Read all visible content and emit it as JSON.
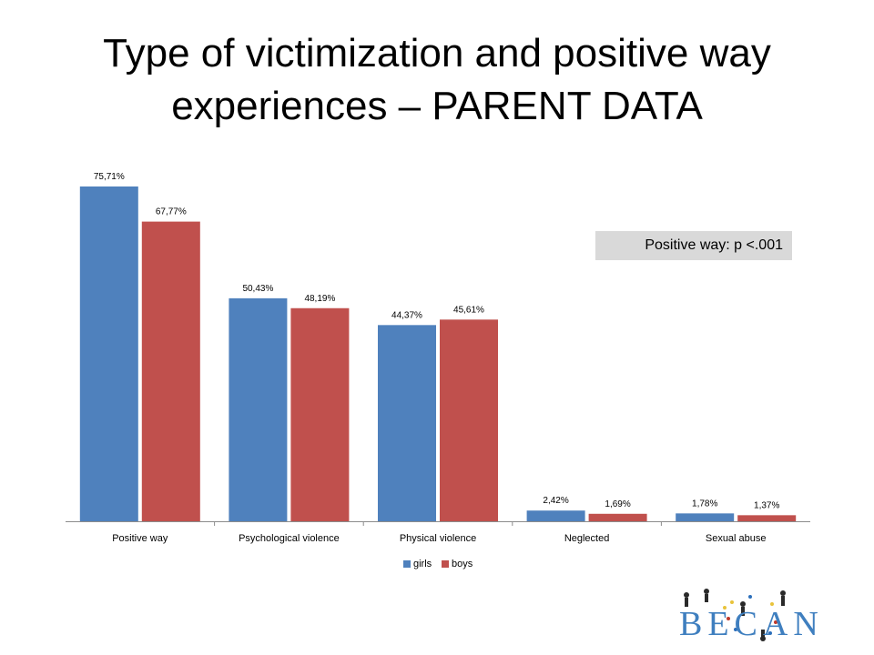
{
  "slide": {
    "title_line1": "Type of victimization and positive way",
    "title_line2": "experiences – PARENT DATA"
  },
  "note": {
    "text": "Positive way: p <.001"
  },
  "chart_data": {
    "type": "bar",
    "categories": [
      "Positive way",
      "Psychological violence",
      "Physical violence",
      "Neglected",
      "Sexual abuse"
    ],
    "series": [
      {
        "name": "girls",
        "color": "#4f81bd",
        "values": [
          75.71,
          50.43,
          44.37,
          2.42,
          1.78
        ],
        "labels": [
          "75,71%",
          "50,43%",
          "44,37%",
          "2,42%",
          "1,78%"
        ]
      },
      {
        "name": "boys",
        "color": "#c0504d",
        "values": [
          67.77,
          48.19,
          45.61,
          1.69,
          1.37
        ],
        "labels": [
          "67,77%",
          "48,19%",
          "45,61%",
          "1,69%",
          "1,37%"
        ]
      }
    ],
    "ylim": [
      0,
      80
    ],
    "grid": false,
    "legend_position": "bottom"
  },
  "logo": {
    "text": "BECAN",
    "icon": "becan-logo-icon"
  }
}
